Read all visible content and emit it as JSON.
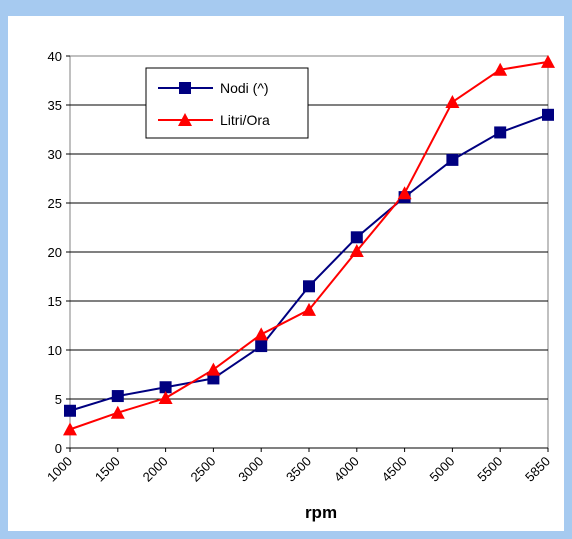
{
  "chart_data": {
    "type": "line",
    "title": "",
    "xlabel": "rpm",
    "ylabel": "",
    "categories": [
      "1000",
      "1500",
      "2000",
      "2500",
      "3000",
      "3500",
      "4000",
      "4500",
      "5000",
      "5500",
      "5850"
    ],
    "ylim": [
      0,
      40
    ],
    "yticks": [
      0,
      5,
      10,
      15,
      20,
      25,
      30,
      35,
      40
    ],
    "grid": "horizontal",
    "legend_position": "top-left",
    "series": [
      {
        "name": "Nodi (^)",
        "color": "#000080",
        "marker": "square",
        "values": [
          3.8,
          5.3,
          6.2,
          7.1,
          10.4,
          16.5,
          21.5,
          25.6,
          29.4,
          32.2,
          34.0
        ]
      },
      {
        "name": "Litri/Ora",
        "color": "#ff0000",
        "marker": "triangle",
        "values": [
          1.9,
          3.6,
          5.1,
          8.0,
          11.6,
          14.1,
          20.1,
          26.0,
          35.3,
          38.6,
          39.4
        ]
      }
    ]
  }
}
